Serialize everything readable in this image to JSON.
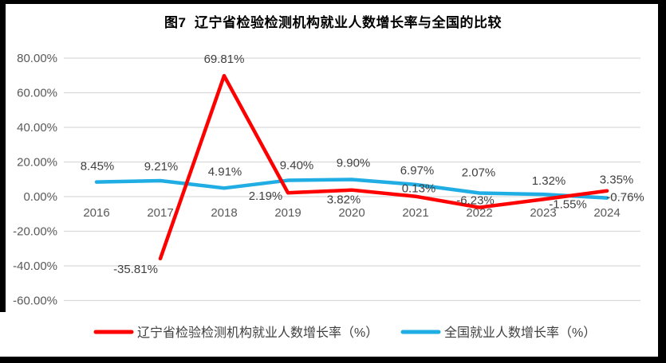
{
  "title": "图7  辽宁省检验检测机构就业人数增长率与全国的比较",
  "chart_data": {
    "type": "line",
    "categories": [
      "2016",
      "2017",
      "2018",
      "2019",
      "2020",
      "2021",
      "2022",
      "2023",
      "2024"
    ],
    "series": [
      {
        "name": "辽宁省检验检测机构就业人数增长率（%）",
        "color": "#FF0000",
        "values": [
          null,
          -35.81,
          69.81,
          2.19,
          3.82,
          0.13,
          -6.23,
          -1.55,
          3.35
        ],
        "labels": [
          "",
          "-35.81%",
          "69.81%",
          "2.19%",
          "3.82%",
          "0.13%",
          "-6.23%",
          "-1.55%",
          "3.35%"
        ],
        "label_offsets": [
          [
            0,
            0
          ],
          [
            -31,
            13
          ],
          [
            0,
            -21
          ],
          [
            -28,
            4
          ],
          [
            -10,
            12
          ],
          [
            4,
            -10
          ],
          [
            -5,
            -9
          ],
          [
            31,
            6
          ],
          [
            12,
            -14
          ]
        ]
      },
      {
        "name": "全国就业人数增长率（%）",
        "color": "#1FADE4",
        "values": [
          8.45,
          9.21,
          4.91,
          9.4,
          9.9,
          6.97,
          2.07,
          1.32,
          -0.76
        ],
        "labels": [
          "8.45%",
          "9.21%",
          "4.91%",
          "9.40%",
          "9.90%",
          "6.97%",
          "2.07%",
          "1.32%",
          "-0.76%"
        ],
        "label_offsets": [
          [
            1,
            -20
          ],
          [
            1,
            -18
          ],
          [
            1,
            -21
          ],
          [
            11,
            -19
          ],
          [
            2,
            -21
          ],
          [
            2,
            -18
          ],
          [
            -1,
            -26
          ],
          [
            7,
            -17
          ],
          [
            23,
            -1
          ]
        ]
      }
    ],
    "ylim": [
      -60,
      80
    ],
    "ytick_step": 20,
    "yticks": [
      {
        "value": 80,
        "label": "80.00%"
      },
      {
        "value": 60,
        "label": "60.00%"
      },
      {
        "value": 40,
        "label": "40.00%"
      },
      {
        "value": 20,
        "label": "20.00%"
      },
      {
        "value": 0,
        "label": "0.00%"
      },
      {
        "value": -20,
        "label": "-20.00%"
      },
      {
        "value": -40,
        "label": "-40.00%"
      },
      {
        "value": -60,
        "label": "-60.00%"
      }
    ],
    "grid": "horizontal",
    "legend_position": "bottom"
  },
  "colors": {
    "gridline": "#D9D9D9",
    "axis_text": "#595959",
    "data_label_text": "#404040",
    "legend_text": "#404040",
    "frame": "#000000",
    "background": "#FFFFFF"
  }
}
